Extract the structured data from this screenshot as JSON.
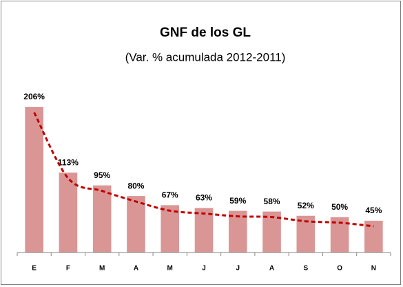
{
  "chart_data": {
    "type": "bar",
    "title": "GNF de los GL",
    "subtitle": "(Var. % acumulada 2012-2011)",
    "categories": [
      "E",
      "F",
      "M",
      "A",
      "M",
      "J",
      "J",
      "A",
      "S",
      "O",
      "N"
    ],
    "values": [
      206,
      113,
      95,
      80,
      67,
      63,
      59,
      58,
      52,
      50,
      45
    ],
    "value_labels": [
      "206%",
      "113%",
      "95%",
      "80%",
      "67%",
      "63%",
      "59%",
      "58%",
      "52%",
      "50%",
      "45%"
    ],
    "color": "#d99694",
    "trend_color": "#c00000",
    "ylim": [
      0,
      250
    ]
  }
}
